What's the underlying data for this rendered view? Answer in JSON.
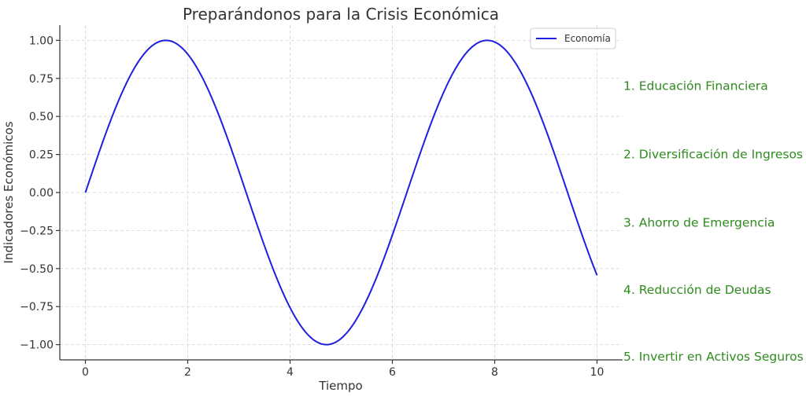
{
  "chart_data": {
    "type": "line",
    "title": "Preparándonos para la Crisis Económica",
    "xlabel": "Tiempo",
    "ylabel": "Indicadores Económicos",
    "xlim": [
      -0.5,
      10.5
    ],
    "ylim": [
      -1.1,
      1.1
    ],
    "grid": true,
    "legend_position": "top-right",
    "x_ticks": [
      0,
      2,
      4,
      6,
      8,
      10
    ],
    "x_tick_labels": [
      "0",
      "2",
      "4",
      "6",
      "8",
      "10"
    ],
    "y_ticks": [
      1.0,
      0.75,
      0.5,
      0.25,
      0.0,
      -0.25,
      -0.5,
      -0.75,
      -1.0
    ],
    "y_tick_labels": [
      "1.00",
      "0.75",
      "0.50",
      "0.25",
      "0.00",
      "−0.25",
      "−0.50",
      "−0.75",
      "−1.00"
    ],
    "series": [
      {
        "name": "Economía",
        "color": "#1f1fe0",
        "x": [
          0.0,
          0.5,
          1.0,
          1.5,
          1.571,
          2.0,
          2.5,
          3.0,
          3.5,
          4.0,
          4.5,
          4.712,
          5.0,
          5.5,
          6.0,
          6.5,
          7.0,
          7.5,
          7.854,
          8.0,
          8.5,
          9.0,
          9.5,
          10.0
        ],
        "y": [
          0.0,
          0.479,
          0.841,
          0.997,
          1.0,
          0.909,
          0.598,
          0.141,
          -0.351,
          -0.757,
          -0.978,
          -1.0,
          -0.959,
          -0.706,
          -0.279,
          0.215,
          0.657,
          0.938,
          1.0,
          0.989,
          0.798,
          0.412,
          -0.075,
          -0.544
        ]
      }
    ],
    "annotations": [
      {
        "text": "1. Educación Financiera",
        "y": 0.7,
        "color": "#2e8b1e"
      },
      {
        "text": "2. Diversificación de Ingresos",
        "y": 0.25,
        "color": "#2e8b1e"
      },
      {
        "text": "3. Ahorro de Emergencia",
        "y": -0.2,
        "color": "#2e8b1e"
      },
      {
        "text": "4. Reducción de Deudas",
        "y": -0.64,
        "color": "#2e8b1e"
      },
      {
        "text": "5. Invertir en Activos Seguros",
        "y": -1.08,
        "color": "#2e8b1e"
      }
    ]
  }
}
